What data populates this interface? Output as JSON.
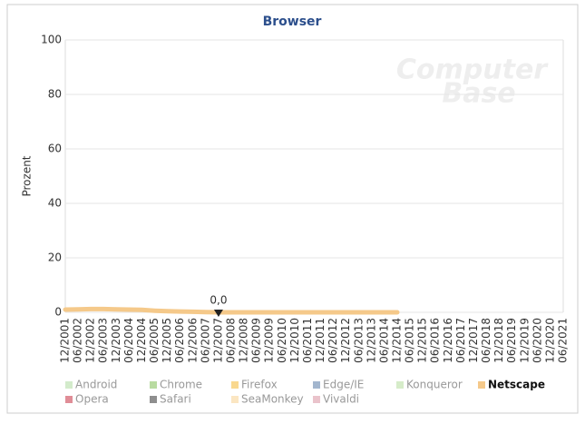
{
  "chart_data": {
    "type": "line",
    "title": "Browser",
    "y_label": "Prozent",
    "watermark": [
      "Computer",
      "Base"
    ],
    "categories": [
      "12/2001",
      "06/2002",
      "12/2002",
      "06/2003",
      "12/2003",
      "06/2004",
      "12/2004",
      "06/2005",
      "12/2005",
      "06/2006",
      "12/2006",
      "06/2007",
      "12/2007",
      "06/2008",
      "12/2008",
      "06/2009",
      "12/2009",
      "06/2010",
      "12/2010",
      "06/2011",
      "12/2011",
      "06/2012",
      "12/2012",
      "06/2013",
      "12/2013",
      "06/2014",
      "12/2014",
      "06/2015",
      "12/2015",
      "06/2016",
      "12/2016",
      "06/2017",
      "12/2017",
      "06/2018",
      "12/2018",
      "06/2019",
      "12/2019",
      "06/2020",
      "12/2020",
      "06/2021"
    ],
    "series": [
      {
        "name": "Netscape",
        "color": "#f5c98a",
        "values": [
          1.0,
          1.1,
          1.2,
          1.2,
          1.1,
          1.0,
          0.9,
          0.6,
          0.4,
          0.3,
          0.2,
          0.1,
          0.0,
          0.0,
          0.0,
          0.0,
          0.0,
          0.0,
          0.0,
          0.0,
          0.0,
          0.0,
          0.0,
          0.0,
          0.0,
          0.0,
          0.0,
          null,
          null,
          null,
          null,
          null,
          null,
          null,
          null,
          null,
          null,
          null,
          null,
          null
        ],
        "value_labels": [
          null,
          null,
          null,
          null,
          null,
          null,
          null,
          null,
          null,
          null,
          null,
          null,
          "0,0",
          null,
          null,
          null,
          null,
          null,
          null,
          null,
          null,
          null,
          null,
          null,
          null,
          null,
          null,
          null,
          null,
          null,
          null,
          null,
          null,
          null,
          null,
          null,
          null,
          null,
          null,
          null
        ]
      }
    ],
    "legend_items": [
      {
        "name": "Android",
        "color": "#d3ebcb",
        "active": false
      },
      {
        "name": "Chrome",
        "color": "#b9dba1",
        "active": false
      },
      {
        "name": "Firefox",
        "color": "#f9d88f",
        "active": false
      },
      {
        "name": "Edge/IE",
        "color": "#a3b6ce",
        "active": false
      },
      {
        "name": "Konqueror",
        "color": "#d6ecc9",
        "active": false
      },
      {
        "name": "Netscape",
        "color": "#f5c98a",
        "active": true
      },
      {
        "name": "Opera",
        "color": "#e08d97",
        "active": false
      },
      {
        "name": "Safari",
        "color": "#8e8e8e",
        "active": false
      },
      {
        "name": "SeaMonkey",
        "color": "#fbe6c2",
        "active": false
      },
      {
        "name": "Vivaldi",
        "color": "#eac3cb",
        "active": false
      }
    ],
    "ylim": [
      0,
      100
    ],
    "yticks": [
      0,
      20,
      40,
      60,
      80,
      100
    ],
    "grid": true
  }
}
